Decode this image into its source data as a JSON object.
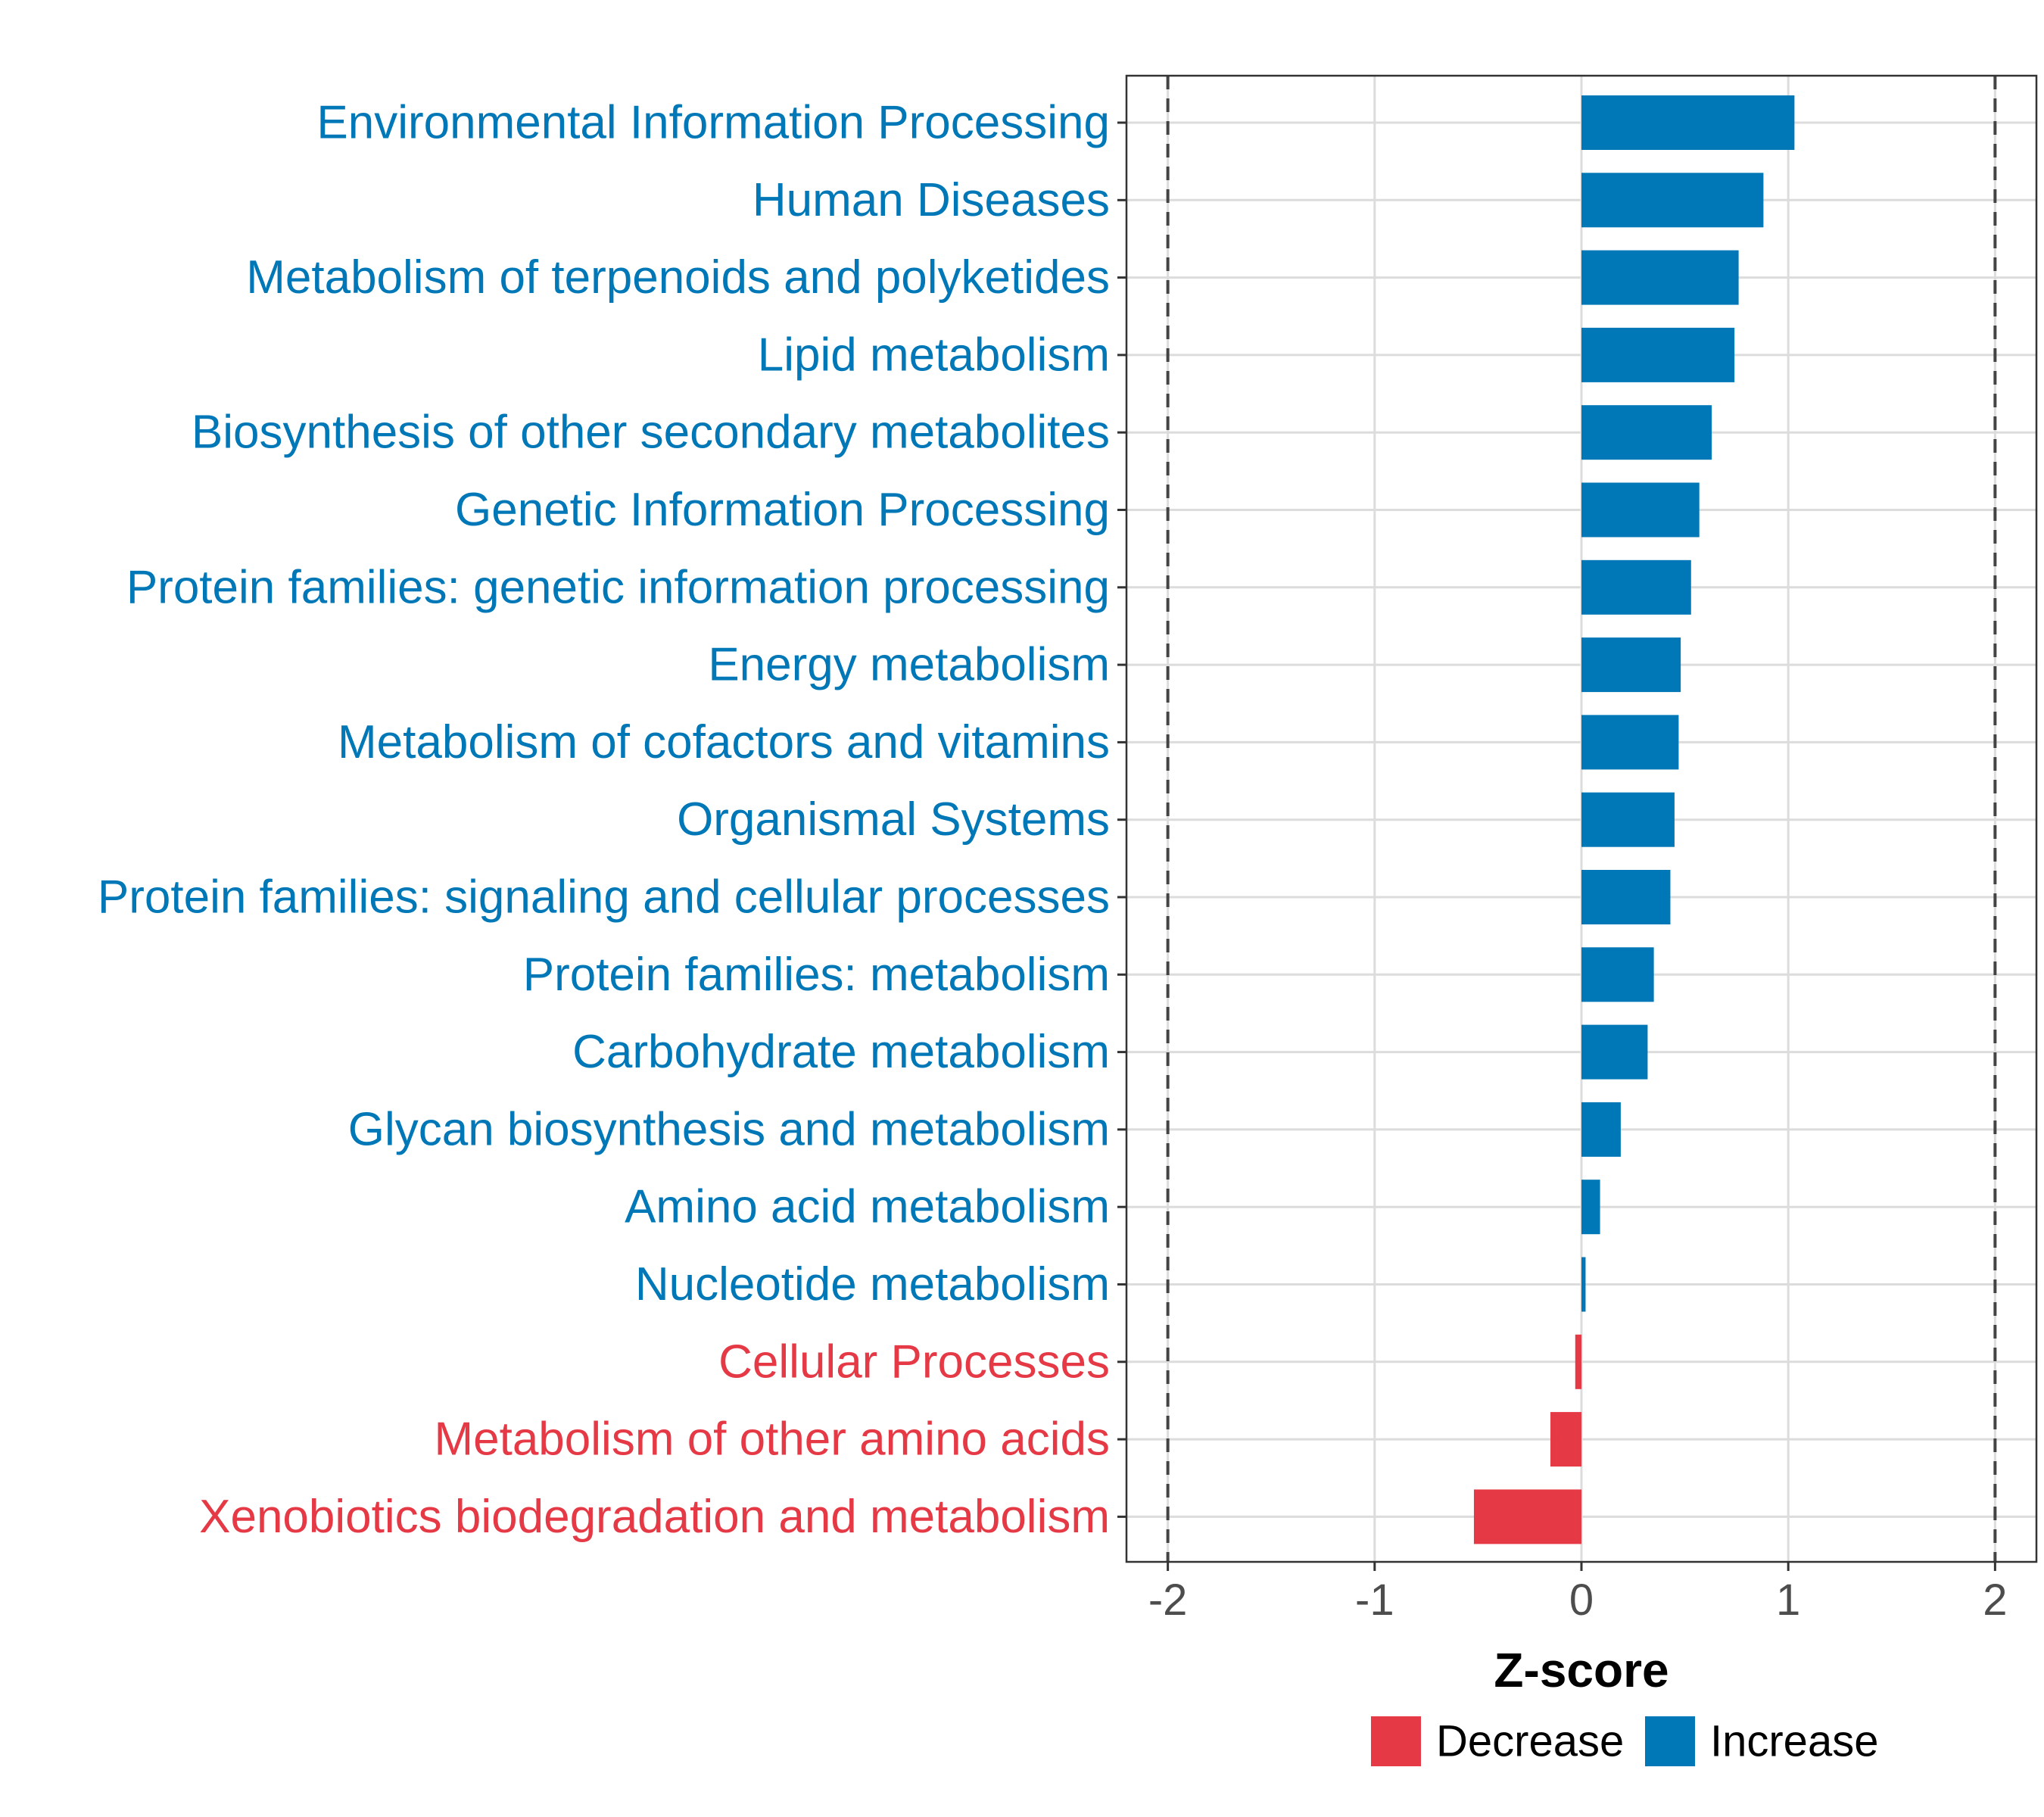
{
  "chart_data": {
    "type": "bar",
    "orientation": "horizontal",
    "title": "",
    "xlabel": "Z-score",
    "ylabel": "",
    "xlim": [
      -2.2,
      2.2
    ],
    "xticks": [
      -2,
      -1,
      0,
      1,
      2
    ],
    "xtick_labels": [
      "-2",
      "-1",
      "0",
      "1",
      "2"
    ],
    "reference_lines": [
      -2,
      2
    ],
    "grid": true,
    "legend_position": "bottom",
    "categories": [
      "Environmental Information Processing",
      "Human Diseases",
      "Metabolism of terpenoids and polyketides",
      "Lipid metabolism",
      "Biosynthesis of other secondary metabolites",
      "Genetic Information Processing",
      "Protein families: genetic information processing",
      "Energy metabolism",
      "Metabolism of cofactors and vitamins",
      "Organismal Systems",
      "Protein families: signaling and cellular processes",
      "Protein families: metabolism",
      "Carbohydrate metabolism",
      "Glycan biosynthesis and metabolism",
      "Amino acid metabolism",
      "Nucleotide metabolism",
      "Cellular Processes",
      "Metabolism of other amino acids",
      "Xenobiotics biodegradation and metabolism"
    ],
    "values": [
      1.03,
      0.88,
      0.76,
      0.74,
      0.63,
      0.57,
      0.53,
      0.48,
      0.47,
      0.45,
      0.43,
      0.35,
      0.32,
      0.19,
      0.09,
      0.02,
      -0.03,
      -0.15,
      -0.52
    ],
    "groups": [
      "Increase",
      "Increase",
      "Increase",
      "Increase",
      "Increase",
      "Increase",
      "Increase",
      "Increase",
      "Increase",
      "Increase",
      "Increase",
      "Increase",
      "Increase",
      "Increase",
      "Increase",
      "Increase",
      "Decrease",
      "Decrease",
      "Decrease"
    ],
    "legend": [
      {
        "name": "Decrease",
        "color": "#e63946"
      },
      {
        "name": "Increase",
        "color": "#0077b6"
      }
    ]
  }
}
